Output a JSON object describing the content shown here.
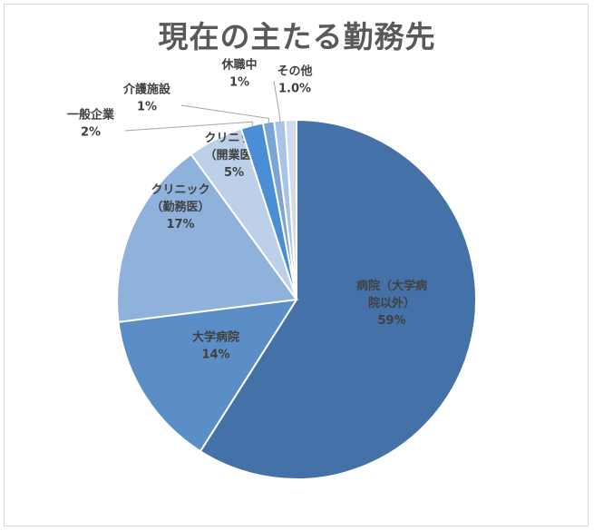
{
  "chart_data": {
    "type": "pie",
    "title": "現在の主たる勤務先",
    "slices": [
      {
        "label_lines": [
          "病院（大学病",
          "院以外）"
        ],
        "pct_label": "59%",
        "value": 59,
        "color": "#4472a8"
      },
      {
        "label_lines": [
          "大学病院"
        ],
        "pct_label": "14%",
        "value": 14,
        "color": "#5b8ec6"
      },
      {
        "label_lines": [
          "クリニック",
          "（勤務医）"
        ],
        "pct_label": "17%",
        "value": 17,
        "color": "#8fb2dc"
      },
      {
        "label_lines": [
          "クリニック",
          "（開業医）"
        ],
        "pct_label": "5%",
        "value": 5,
        "color": "#bcd0ea"
      },
      {
        "label_lines": [
          "一般企業"
        ],
        "pct_label": "2%",
        "value": 2,
        "color": "#4a8fd6"
      },
      {
        "label_lines": [
          "介護施設"
        ],
        "pct_label": "1%",
        "value": 1,
        "color": "#7aa3d6"
      },
      {
        "label_lines": [
          "休職中"
        ],
        "pct_label": "1%",
        "value": 1,
        "color": "#a9c3e6"
      },
      {
        "label_lines": [
          "その他"
        ],
        "pct_label": "1.0%",
        "value": 1,
        "color": "#cfdcee"
      }
    ]
  }
}
